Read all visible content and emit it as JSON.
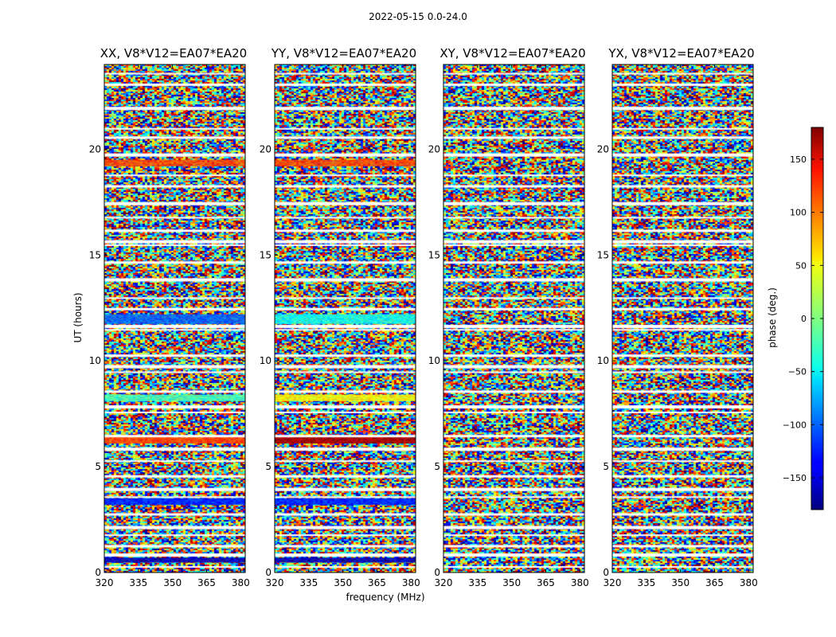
{
  "figure": {
    "suptitle": "2022-05-15 0.0-24.0",
    "xlabel": "frequency (MHz)",
    "ylabel": "UT (hours)",
    "colorbar_label": "phase (deg.)"
  },
  "chart_data": {
    "type": "heatmap",
    "colormap": "jet",
    "panels": [
      {
        "title": "XX, V8*V12=EA07*EA20"
      },
      {
        "title": "YY, V8*V12=EA07*EA20"
      },
      {
        "title": "XY, V8*V12=EA07*EA20"
      },
      {
        "title": "YX, V8*V12=EA07*EA20"
      }
    ],
    "x_ticks": [
      320,
      335,
      350,
      365,
      380
    ],
    "x_range": [
      320,
      382
    ],
    "y_ticks": [
      0,
      5,
      10,
      15,
      20
    ],
    "y_range": [
      0,
      24
    ],
    "color_ticks": [
      -150,
      -100,
      -50,
      0,
      50,
      100,
      150
    ],
    "color_range": [
      -180,
      180
    ],
    "coherent_bands": [
      {
        "panels": [
          "XX",
          "YY"
        ],
        "ut_start": 19.2,
        "ut_end": 19.5,
        "phase": 110
      },
      {
        "panels": [
          "XX"
        ],
        "ut_start": 11.8,
        "ut_end": 12.2,
        "phase": -100
      },
      {
        "panels": [
          "YY"
        ],
        "ut_start": 11.8,
        "ut_end": 12.2,
        "phase": -40
      },
      {
        "panels": [
          "XX"
        ],
        "ut_start": 8.1,
        "ut_end": 8.4,
        "phase": -20
      },
      {
        "panels": [
          "YY"
        ],
        "ut_start": 8.1,
        "ut_end": 8.4,
        "phase": 45
      },
      {
        "panels": [
          "XX"
        ],
        "ut_start": 6.1,
        "ut_end": 6.4,
        "phase": 110
      },
      {
        "panels": [
          "YY"
        ],
        "ut_start": 6.1,
        "ut_end": 6.4,
        "phase": 165
      },
      {
        "panels": [
          "XX",
          "YY"
        ],
        "ut_start": 3.2,
        "ut_end": 3.5,
        "phase": -120
      },
      {
        "panels": [
          "XX",
          "YY"
        ],
        "ut_start": 0.5,
        "ut_end": 0.7,
        "phase": -160
      }
    ],
    "flagged_ut_hours": [
      23.6,
      23.1,
      22.0,
      21.0,
      20.6,
      19.8,
      18.8,
      18.3,
      17.5,
      16.8,
      16.2,
      15.7,
      15.5,
      14.7,
      13.9,
      13.0,
      12.5,
      11.7,
      11.5,
      10.3,
      9.8,
      9.5,
      8.6,
      7.9,
      7.6,
      6.5,
      5.9,
      5.3,
      4.6,
      4.0,
      3.6,
      2.8,
      2.2,
      1.8,
      1.3,
      0.9,
      0.3
    ]
  }
}
